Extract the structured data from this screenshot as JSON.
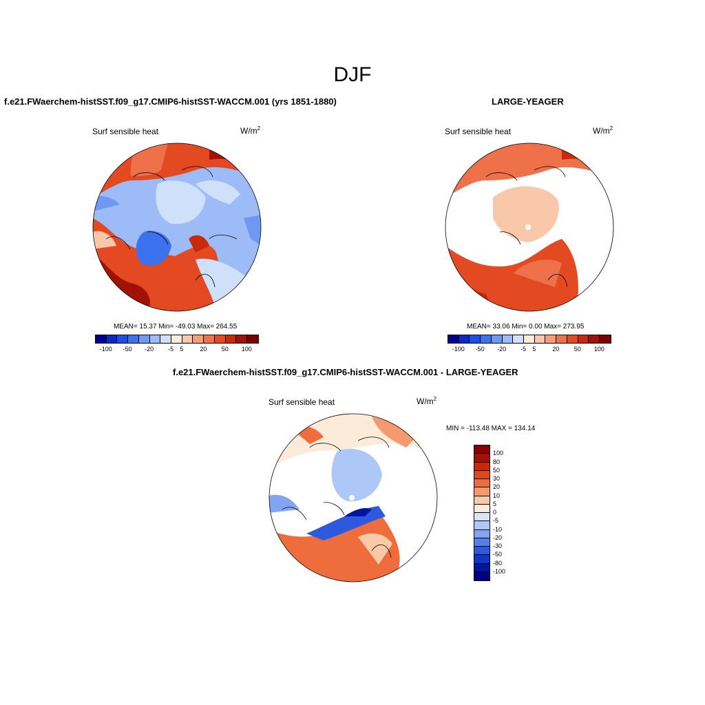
{
  "figure_title": "DJF",
  "panels": [
    {
      "title": "f.e21.FWaerchem-histSST.f09_g17.CMIP6-histSST-WACCM.001 (yrs 1851-1880)",
      "variable": "Surf sensible heat",
      "units": "W/m",
      "units_exp": "2",
      "stats": {
        "text": "MEAN=  15.37  Min= -49.03  Max= 264.55",
        "mean": 15.37,
        "min": -49.03,
        "max": 264.55
      },
      "colorbar_ticks": [
        "-100",
        "-50",
        "-20",
        "-5",
        "5",
        "20",
        "50",
        "100"
      ]
    },
    {
      "title": "LARGE-YEAGER",
      "variable": "Surf sensible heat",
      "units": "W/m",
      "units_exp": "2",
      "stats": {
        "text": "MEAN=  33.06  Min=   0.00  Max= 273.95",
        "mean": 33.06,
        "min": 0.0,
        "max": 273.95
      },
      "colorbar_ticks": [
        "-100",
        "-50",
        "-20",
        "-5",
        "5",
        "20",
        "50",
        "100"
      ]
    },
    {
      "title": "f.e21.FWaerchem-histSST.f09_g17.CMIP6-histSST-WACCM.001 - LARGE-YEAGER",
      "variable": "Surf sensible heat",
      "units": "W/m",
      "units_exp": "2",
      "stats": {
        "text": "MIN = -113.48 MAX = 134.14",
        "min": -113.48,
        "max": 134.14
      },
      "colorbar_ticks": [
        "100",
        "80",
        "50",
        "30",
        "20",
        "10",
        "5",
        "0",
        "-5",
        "-10",
        "-20",
        "-30",
        "-50",
        "-80",
        "-100"
      ]
    }
  ],
  "colors": {
    "abs_scale": [
      "#00008f",
      "#0a2ac6",
      "#1e4ee6",
      "#3d72ee",
      "#6f98f2",
      "#9dbbf6",
      "#cfe0fa",
      "#fde9d9",
      "#f9c7aa",
      "#f59e78",
      "#ee7149",
      "#e44a22",
      "#c92a0c",
      "#a11204",
      "#7d0000"
    ],
    "diff_scale": [
      "#860000",
      "#a80e00",
      "#c72a06",
      "#e0471a",
      "#ef6d3c",
      "#f59a6e",
      "#f9c9a8",
      "#fdebd9",
      "#d6e5fb",
      "#adc8f6",
      "#83a5f0",
      "#577fe9",
      "#2d59df",
      "#0f36c9",
      "#00159f",
      "#000080"
    ]
  }
}
